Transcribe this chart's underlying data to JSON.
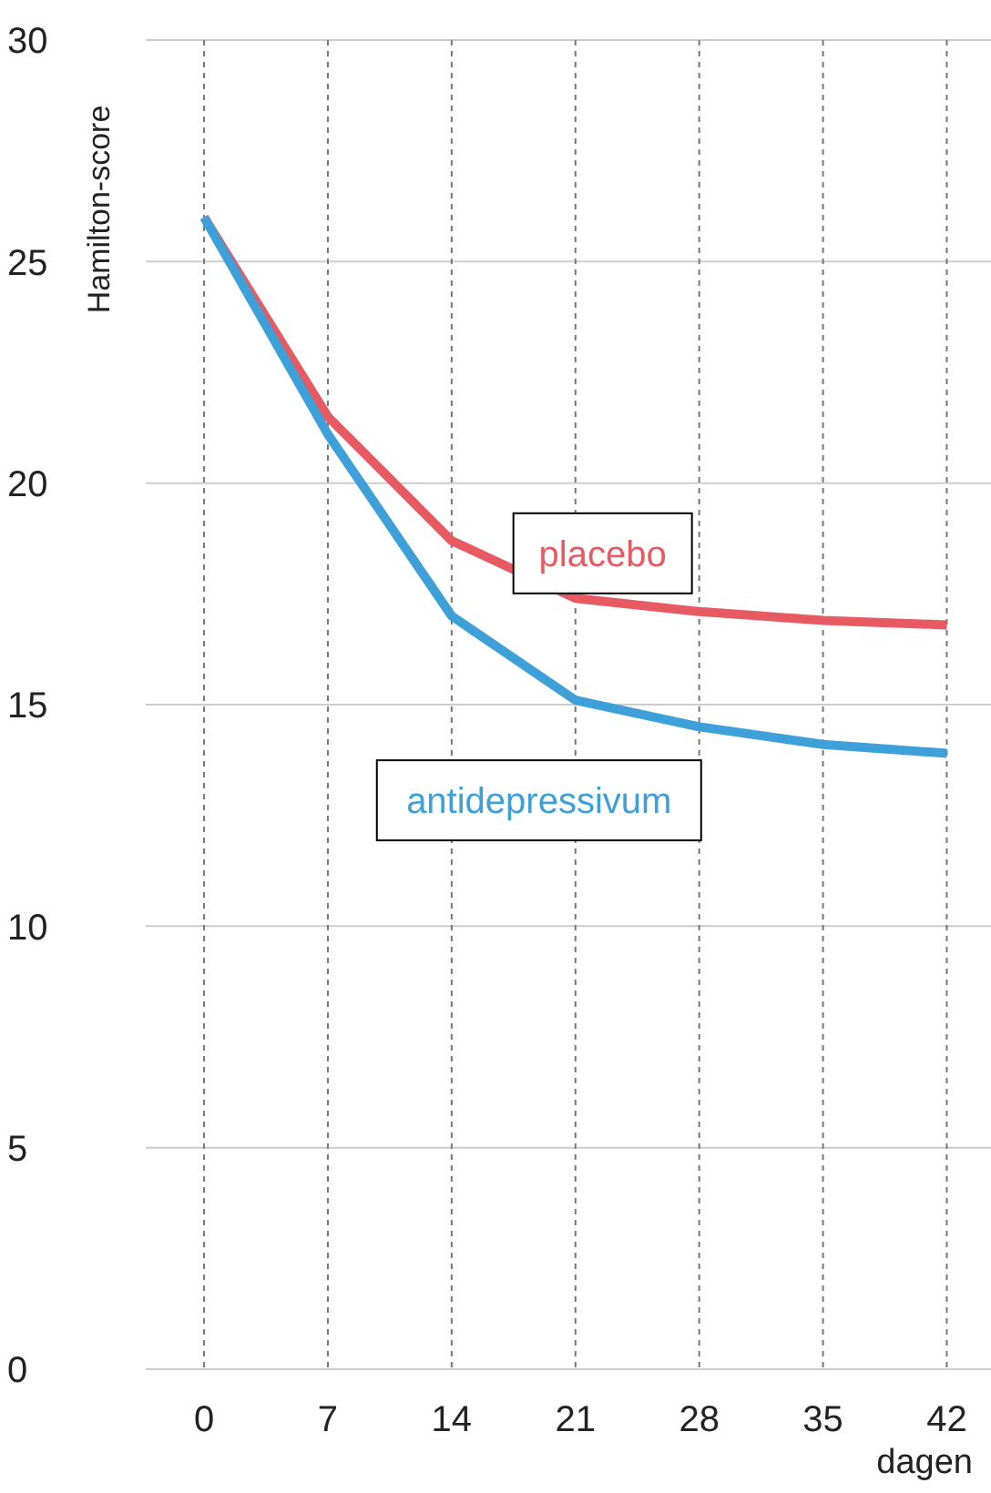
{
  "chart_data": {
    "type": "line",
    "xlabel": "dagen",
    "ylabel": "Hamilton-score",
    "x": [
      0,
      7,
      14,
      21,
      28,
      35,
      42
    ],
    "series": [
      {
        "name": "placebo",
        "color": "#e85a62",
        "values": [
          26.0,
          21.5,
          18.7,
          17.4,
          17.1,
          16.9,
          16.8
        ]
      },
      {
        "name": "antidepressivum",
        "color": "#3ea0d8",
        "values": [
          26.0,
          21.1,
          17.0,
          15.1,
          14.5,
          14.1,
          13.9
        ]
      }
    ],
    "xlim": [
      -3.3,
      44.5
    ],
    "xticks": [
      0,
      7,
      14,
      21,
      28,
      35,
      42
    ],
    "ylim": [
      0,
      30
    ],
    "yticks": [
      0,
      5,
      10,
      15,
      20,
      25,
      30
    ],
    "grid": true,
    "marker": "none",
    "line_style": "solid"
  }
}
